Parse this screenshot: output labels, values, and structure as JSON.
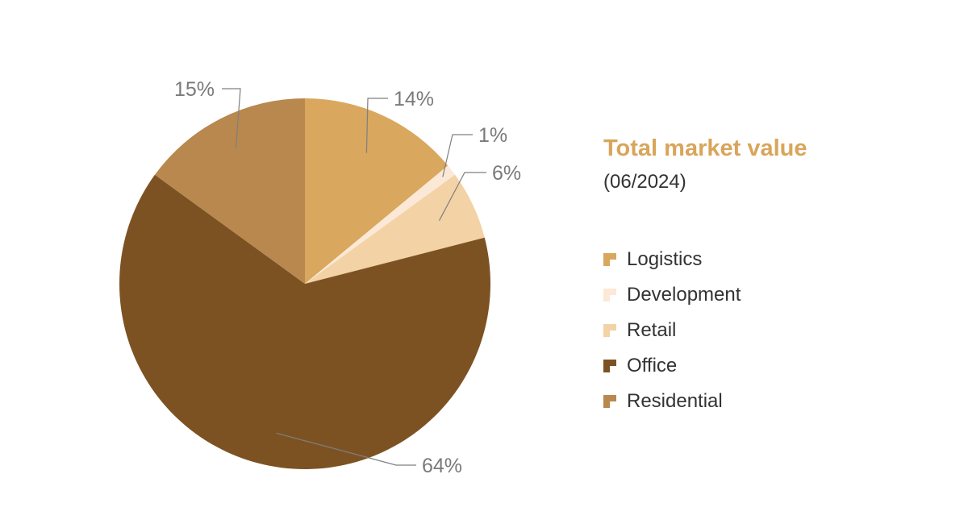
{
  "chart_data": {
    "type": "pie",
    "title": "Total market value",
    "subtitle": "(06/2024)",
    "legend_position": "right",
    "slices": [
      {
        "name": "Logistics",
        "value": 14,
        "label": "14%",
        "color": "#d9a75e"
      },
      {
        "name": "Development",
        "value": 1,
        "label": "1%",
        "color": "#fce8d6"
      },
      {
        "name": "Retail",
        "value": 6,
        "label": "6%",
        "color": "#f3d2a5"
      },
      {
        "name": "Office",
        "value": 64,
        "label": "64%",
        "color": "#7d5222"
      },
      {
        "name": "Residential",
        "value": 15,
        "label": "15%",
        "color": "#b8884e"
      }
    ]
  }
}
